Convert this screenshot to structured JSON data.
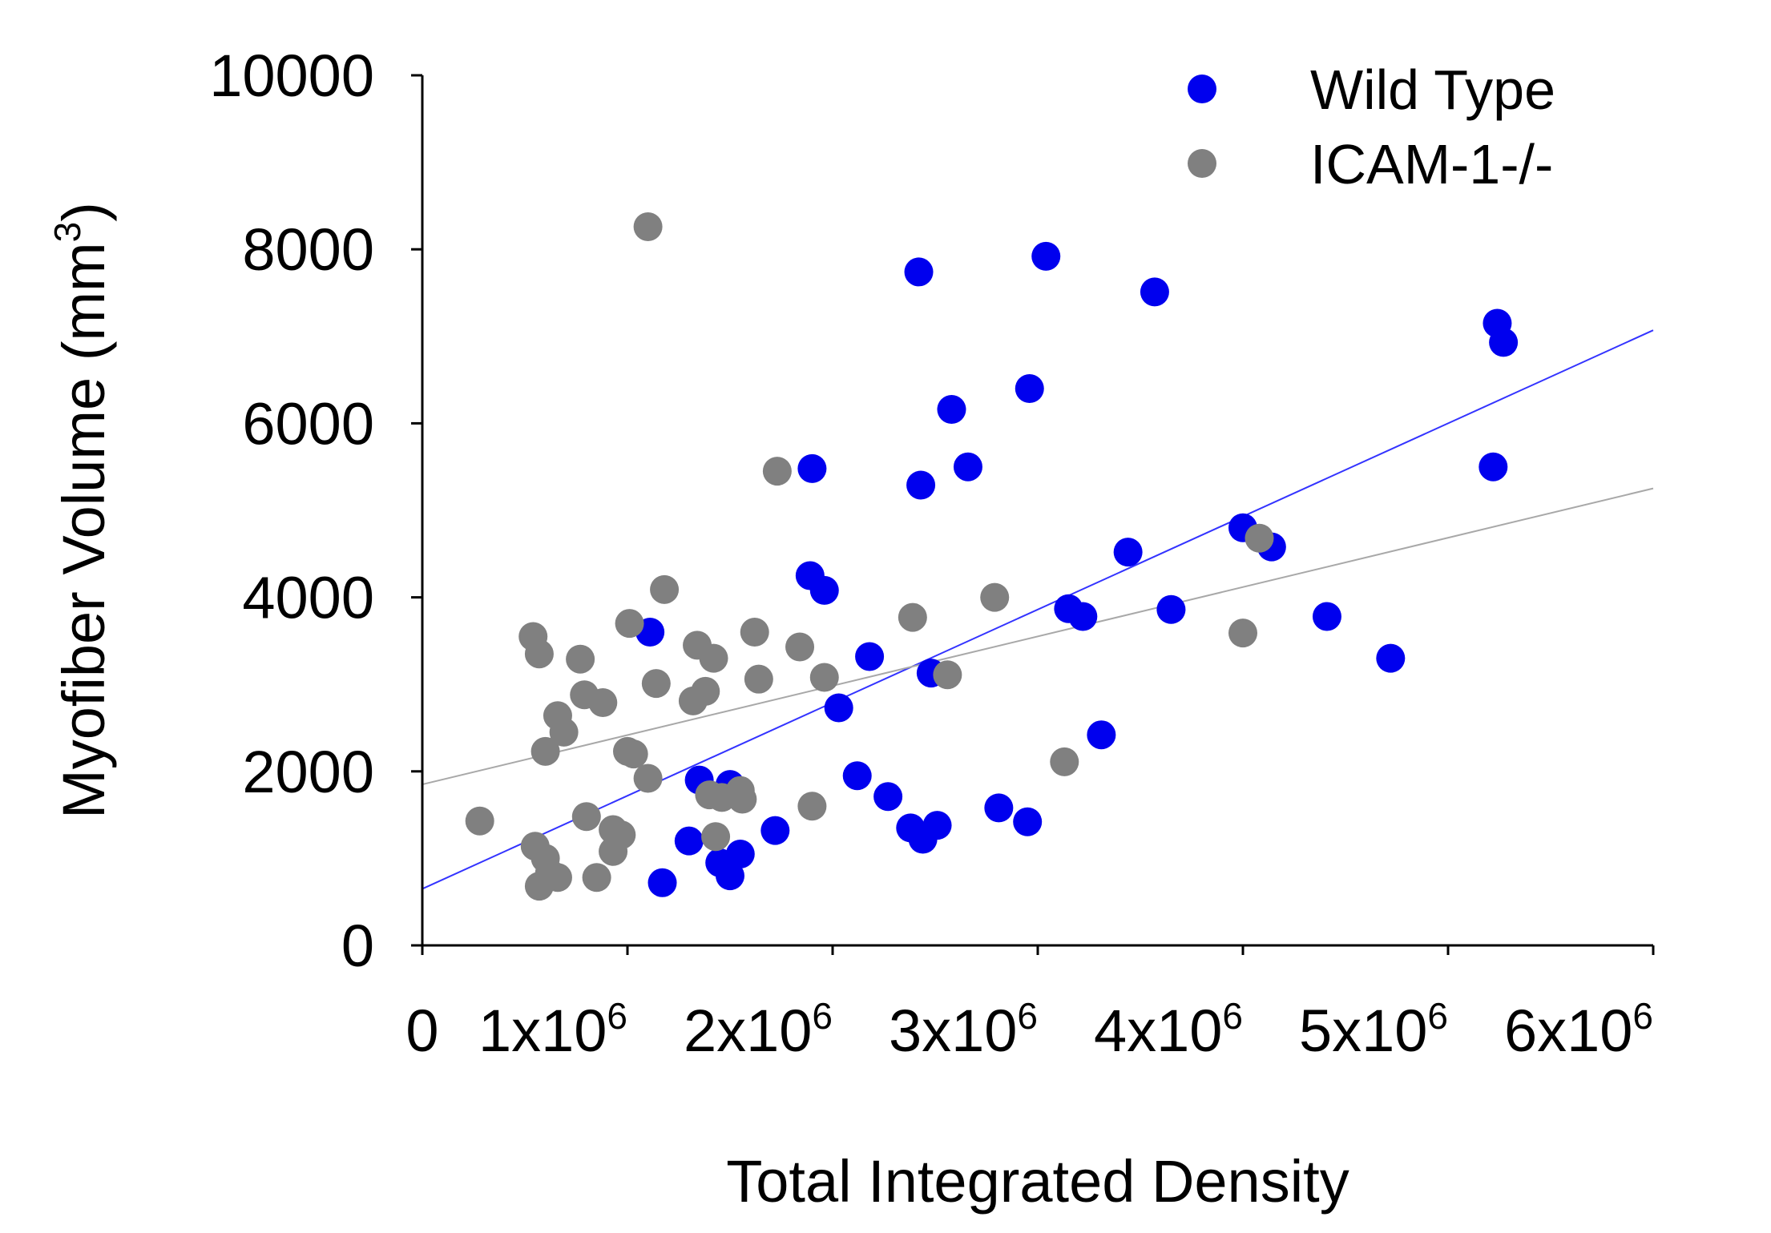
{
  "colors": {
    "wild_type": "#0000ee",
    "icam": "#808080",
    "wild_type_fit": "#3333ff",
    "icam_fit": "#a8a8a8",
    "axis": "#000000"
  },
  "chart_data": {
    "type": "scatter",
    "title": "",
    "xlabel": "Total Integrated Density",
    "ylabel": "Myofiber Volume (mm",
    "ylabel_sup": "3",
    "ylabel_close": ")",
    "xlim": [
      0,
      6000000
    ],
    "ylim": [
      0,
      10000
    ],
    "x_ticks": [
      {
        "value": 0,
        "base": "0",
        "exp": ""
      },
      {
        "value": 1000000,
        "base": "1x10",
        "exp": "6"
      },
      {
        "value": 2000000,
        "base": "2x10",
        "exp": "6"
      },
      {
        "value": 3000000,
        "base": "3x10",
        "exp": "6"
      },
      {
        "value": 4000000,
        "base": "4x10",
        "exp": "6"
      },
      {
        "value": 5000000,
        "base": "5x10",
        "exp": "6"
      },
      {
        "value": 6000000,
        "base": "6x10",
        "exp": "6"
      }
    ],
    "y_ticks": [
      {
        "value": 0,
        "label": "0"
      },
      {
        "value": 2000,
        "label": "2000"
      },
      {
        "value": 4000,
        "label": "4000"
      },
      {
        "value": 6000,
        "label": "6000"
      },
      {
        "value": 8000,
        "label": "8000"
      },
      {
        "value": 10000,
        "label": "10000"
      }
    ],
    "legend_position": "top-right",
    "series": [
      {
        "name": "Wild Type",
        "color_key": "wild_type",
        "fit": {
          "intercept": 650,
          "slope": 0.00107
        },
        "points": [
          [
            1110000,
            3600
          ],
          [
            1170000,
            720
          ],
          [
            1300000,
            1200
          ],
          [
            1350000,
            1900
          ],
          [
            1450000,
            950
          ],
          [
            1500000,
            1850
          ],
          [
            1500000,
            800
          ],
          [
            1550000,
            1050
          ],
          [
            1720000,
            1320
          ],
          [
            1890000,
            4250
          ],
          [
            1900000,
            5480
          ],
          [
            1960000,
            4080
          ],
          [
            2030000,
            2730
          ],
          [
            2120000,
            1950
          ],
          [
            2180000,
            3320
          ],
          [
            2270000,
            1710
          ],
          [
            2380000,
            1350
          ],
          [
            2420000,
            7740
          ],
          [
            2430000,
            5290
          ],
          [
            2440000,
            1220
          ],
          [
            2480000,
            3130
          ],
          [
            2510000,
            1380
          ],
          [
            2580000,
            6160
          ],
          [
            2660000,
            5500
          ],
          [
            2810000,
            1580
          ],
          [
            2950000,
            1420
          ],
          [
            2960000,
            6400
          ],
          [
            3040000,
            7920
          ],
          [
            3150000,
            3870
          ],
          [
            3220000,
            3780
          ],
          [
            3310000,
            2420
          ],
          [
            3440000,
            4520
          ],
          [
            3570000,
            7510
          ],
          [
            3650000,
            3860
          ],
          [
            4000000,
            4800
          ],
          [
            4140000,
            4580
          ],
          [
            4410000,
            3780
          ],
          [
            4720000,
            3300
          ],
          [
            5220000,
            5500
          ],
          [
            5240000,
            7150
          ],
          [
            5270000,
            6930
          ]
        ]
      },
      {
        "name": "ICAM-1-/-",
        "color_key": "icam",
        "fit": {
          "intercept": 1850,
          "slope": 0.000567
        },
        "points": [
          [
            280000,
            1430
          ],
          [
            540000,
            3550
          ],
          [
            550000,
            1140
          ],
          [
            570000,
            3350
          ],
          [
            570000,
            680
          ],
          [
            600000,
            1000
          ],
          [
            600000,
            2230
          ],
          [
            620000,
            830
          ],
          [
            660000,
            2640
          ],
          [
            660000,
            780
          ],
          [
            690000,
            2450
          ],
          [
            770000,
            3290
          ],
          [
            790000,
            2880
          ],
          [
            800000,
            1480
          ],
          [
            850000,
            780
          ],
          [
            880000,
            2790
          ],
          [
            930000,
            1330
          ],
          [
            930000,
            1080
          ],
          [
            970000,
            1270
          ],
          [
            1000000,
            2230
          ],
          [
            1010000,
            3700
          ],
          [
            1030000,
            2200
          ],
          [
            1100000,
            1920
          ],
          [
            1100000,
            8260
          ],
          [
            1140000,
            3010
          ],
          [
            1180000,
            4090
          ],
          [
            1320000,
            2810
          ],
          [
            1340000,
            3450
          ],
          [
            1380000,
            2920
          ],
          [
            1400000,
            1730
          ],
          [
            1420000,
            3300
          ],
          [
            1430000,
            1250
          ],
          [
            1460000,
            1700
          ],
          [
            1550000,
            1780
          ],
          [
            1560000,
            1680
          ],
          [
            1620000,
            3600
          ],
          [
            1640000,
            3060
          ],
          [
            1730000,
            5450
          ],
          [
            1840000,
            3430
          ],
          [
            1900000,
            1600
          ],
          [
            1960000,
            3080
          ],
          [
            2390000,
            3770
          ],
          [
            2560000,
            3110
          ],
          [
            2790000,
            4000
          ],
          [
            3130000,
            2110
          ],
          [
            4000000,
            3590
          ],
          [
            4080000,
            4680
          ]
        ]
      }
    ]
  }
}
